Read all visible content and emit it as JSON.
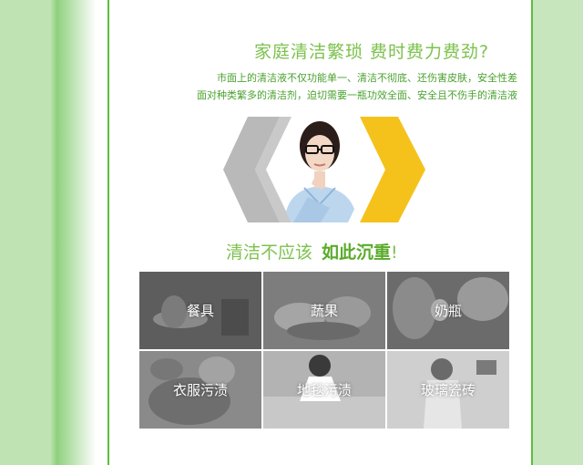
{
  "headline": "家庭清洁繁琐  费时费力费劲?",
  "body": {
    "line1": "市面上的清洁液不仅功能单一、清洁不彻底、还伤害皮肤，安全性差",
    "line2": "面对种类繁多的清洁剂，迫切需要一瓶功效全面、安全且不伤手的清洁液"
  },
  "slogan": {
    "prefix": "清洁不应该",
    "emphasis": "如此沉重",
    "suffix": "!"
  },
  "tiles": [
    {
      "label": "餐具"
    },
    {
      "label": "蔬果"
    },
    {
      "label": "奶瓶"
    },
    {
      "label": "衣服污渍"
    },
    {
      "label": "地毯污渍"
    },
    {
      "label": "玻璃瓷砖"
    }
  ],
  "colors": {
    "brand_green": "#7cc24d",
    "text_green": "#4aa12f",
    "hex_gray": "#b9b9b9",
    "hex_yellow": "#f4c21b",
    "side_green": "#c8e6bd"
  }
}
